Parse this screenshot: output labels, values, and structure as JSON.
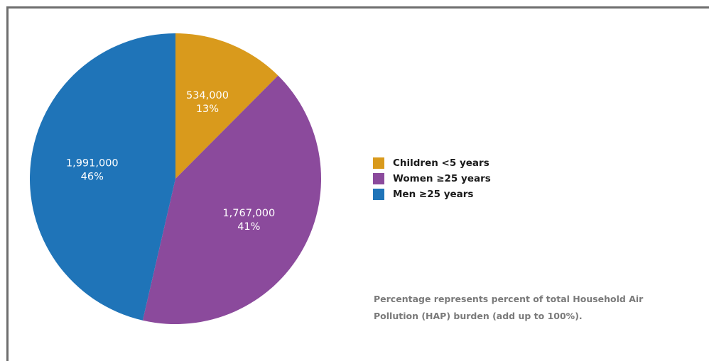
{
  "chart_data": {
    "type": "pie",
    "title": "",
    "categories": [
      "Children <5 years",
      "Women ≥25 years",
      "Men ≥25 years"
    ],
    "values": [
      534000,
      1767000,
      1991000
    ],
    "value_labels": [
      "534,000",
      "1,767,000",
      "1,991,000"
    ],
    "percent_labels": [
      "13%",
      "41%",
      "46%"
    ],
    "colors": [
      "#D99A1C",
      "#8B4A9C",
      "#1F74B8"
    ],
    "legend_position": "right",
    "footnote": "Percentage represents percent of total Household Air Pollution (HAP) burden (add up to 100%)."
  }
}
